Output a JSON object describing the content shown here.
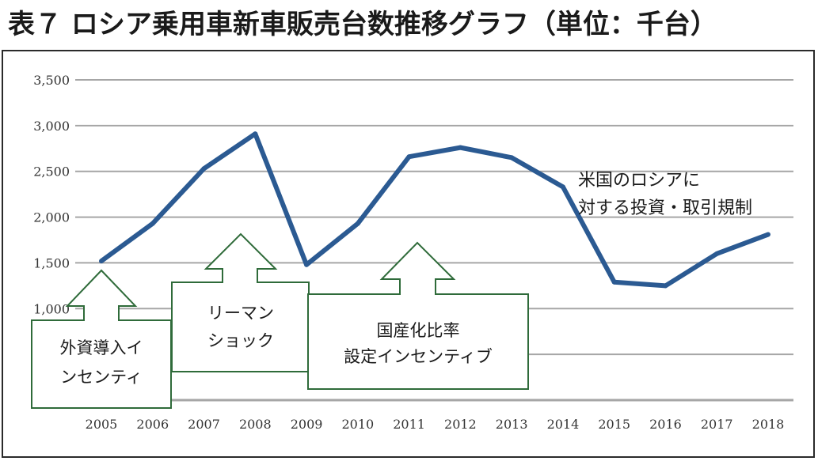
{
  "title": "表７ ロシア乗用車新車販売台数推移グラフ（単位：千台）",
  "colors": {
    "line": "#2b5a92",
    "gridline": "#a6a6a6",
    "callout_border": "#2f6b3a",
    "frame": "#2a2a2a"
  },
  "chart_data": {
    "type": "line",
    "title": "表７ ロシア乗用車新車販売台数推移グラフ（単位：千台）",
    "xlabel": "",
    "ylabel": "",
    "ylim": [
      0,
      3500
    ],
    "grid": true,
    "categories": [
      "2005",
      "2006",
      "2007",
      "2008",
      "2009",
      "2010",
      "2011",
      "2012",
      "2013",
      "2014",
      "2015",
      "2016",
      "2017",
      "2018"
    ],
    "yticks": [
      {
        "value": 0,
        "label": ""
      },
      {
        "value": 500,
        "label": ""
      },
      {
        "value": 1000,
        "label": "1,000"
      },
      {
        "value": 1500,
        "label": "1,500"
      },
      {
        "value": 2000,
        "label": "2,000"
      },
      {
        "value": 2500,
        "label": "2,500"
      },
      {
        "value": 3000,
        "label": "3,000"
      },
      {
        "value": 3500,
        "label": "3,500"
      }
    ],
    "series": [
      {
        "name": "乗用車新車販売台数",
        "values": [
          1520,
          1930,
          2530,
          2910,
          1480,
          1930,
          2660,
          2760,
          2650,
          2330,
          1290,
          1250,
          1600,
          1810
        ]
      }
    ],
    "annotations": [
      {
        "id": "foreign-investment",
        "lines": [
          "外資導入イ",
          "ンセンティ"
        ],
        "points_to": "2005"
      },
      {
        "id": "lehman",
        "lines": [
          "リーマン",
          "ショック"
        ],
        "points_to": "2008"
      },
      {
        "id": "localization",
        "lines": [
          "国産化比率",
          "設定インセンティブ"
        ],
        "points_to": "2011"
      },
      {
        "id": "us-sanctions",
        "lines": [
          "米国のロシアに",
          "対する投資・取引規制"
        ],
        "points_to": "2014"
      }
    ]
  }
}
